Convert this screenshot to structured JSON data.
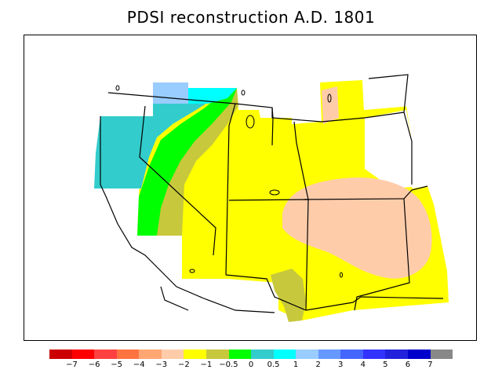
{
  "title": "PDSI reconstruction A.D. 1801",
  "colors": {
    "tan": "#ffccaa",
    "yellow": "#ffff00",
    "olive": "#c8c83c",
    "green": "#00ff00",
    "teal": "#33cccc",
    "cyan": "#00ffff",
    "lightblue": "#99ccff",
    "lines": "#000000"
  },
  "colorbar": {
    "colors": [
      "#cc0000",
      "#ff0000",
      "#ff4040",
      "#ff7340",
      "#ffa673",
      "#ffccaa",
      "#ffff00",
      "#c8c83c",
      "#00ff00",
      "#33cccc",
      "#00ffff",
      "#99ccff",
      "#6699ff",
      "#4466ff",
      "#3333ff",
      "#2222dd",
      "#0000cc",
      "#888888"
    ],
    "labels": [
      "−7",
      "−6",
      "−5",
      "−4",
      "−3",
      "−2",
      "−1",
      "−0.5",
      "0",
      "0.5",
      "1",
      "2",
      "3",
      "4",
      "5",
      "6",
      "7"
    ]
  }
}
